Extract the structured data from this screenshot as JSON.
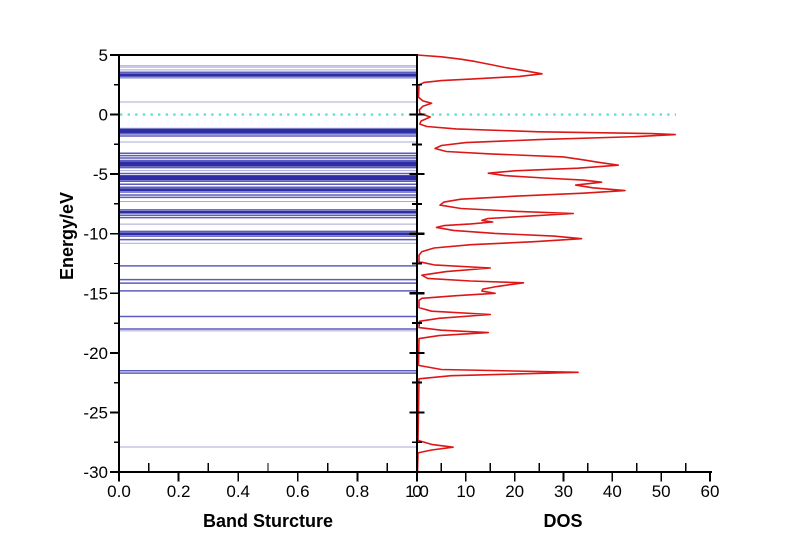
{
  "figure": {
    "background": "#ffffff",
    "description": "Band structure and density-of-states (DOS) dual-panel physics plot"
  },
  "axes": {
    "ylabel": "Energy/eV",
    "ylim": [
      -30,
      5
    ],
    "yticks": [
      5,
      0,
      -5,
      -10,
      -15,
      -20,
      -25,
      -30
    ],
    "ytick_labels": [
      "5",
      "0",
      "-5",
      "-10",
      "-15",
      "-20",
      "-25",
      "-30"
    ],
    "y_minor_step": 2.5,
    "fermi_energy_eV": 0
  },
  "colors": {
    "dos_curve": "#dd1717",
    "fermi_dotted_line": "#5ce2d4",
    "band_faint": "#a9a9d6",
    "band_medium": "#5d5dbe",
    "band_dark": "#2d2da6",
    "axis": "#000000"
  },
  "chart_data": [
    {
      "panel": "band-structure",
      "type": "line",
      "xlabel": "Band Sturcture",
      "xlim": [
        0,
        1
      ],
      "xticks": [
        0,
        0.2,
        0.4,
        0.6,
        0.8,
        1.0
      ],
      "xtick_labels": [
        "0.0",
        "0.2",
        "0.4",
        "0.6",
        "0.8",
        "1.0"
      ],
      "x_minor_positions": [
        0.1,
        0.3,
        0.5,
        0.7,
        0.9
      ],
      "grid": false,
      "energy_levels_format": "[energy_eV, weight] weight: 1=faint thin, 2=medium blue, 3=dark thick cluster",
      "energy_levels": [
        [
          4.1,
          1
        ],
        [
          3.98,
          1
        ],
        [
          3.75,
          1
        ],
        [
          3.55,
          2
        ],
        [
          3.42,
          2
        ],
        [
          3.3,
          3
        ],
        [
          3.17,
          2
        ],
        [
          3.05,
          1
        ],
        [
          1.05,
          1
        ],
        [
          -1.15,
          1
        ],
        [
          -1.3,
          3
        ],
        [
          -1.45,
          3
        ],
        [
          -1.62,
          2
        ],
        [
          -1.8,
          2
        ],
        [
          -2.3,
          1
        ],
        [
          -3.25,
          2
        ],
        [
          -3.45,
          2
        ],
        [
          -3.65,
          2
        ],
        [
          -3.85,
          2
        ],
        [
          -4.05,
          3
        ],
        [
          -4.25,
          3
        ],
        [
          -4.45,
          2
        ],
        [
          -4.7,
          1
        ],
        [
          -4.95,
          2
        ],
        [
          -5.2,
          3
        ],
        [
          -5.4,
          3
        ],
        [
          -5.6,
          2
        ],
        [
          -5.85,
          2
        ],
        [
          -6.1,
          2
        ],
        [
          -6.3,
          3
        ],
        [
          -6.5,
          2
        ],
        [
          -6.75,
          2
        ],
        [
          -6.95,
          2
        ],
        [
          -7.3,
          1
        ],
        [
          -8.0,
          2
        ],
        [
          -8.2,
          3
        ],
        [
          -8.45,
          2
        ],
        [
          -8.65,
          2
        ],
        [
          -9.2,
          1
        ],
        [
          -9.8,
          2
        ],
        [
          -10.0,
          3
        ],
        [
          -10.2,
          2
        ],
        [
          -10.5,
          2
        ],
        [
          -10.8,
          1
        ],
        [
          -12.7,
          2
        ],
        [
          -13.85,
          2
        ],
        [
          -14.15,
          2
        ],
        [
          -14.8,
          2
        ],
        [
          -16.95,
          2
        ],
        [
          -18.0,
          2
        ],
        [
          -18.15,
          1
        ],
        [
          -21.5,
          2
        ],
        [
          -21.7,
          2
        ],
        [
          -27.9,
          1
        ]
      ]
    },
    {
      "panel": "dos",
      "type": "line",
      "xlabel": "DOS",
      "xlim": [
        0,
        60
      ],
      "xticks": [
        0,
        10,
        20,
        30,
        40,
        50,
        60
      ],
      "xtick_labels": [
        "0",
        "10",
        "20",
        "30",
        "40",
        "50",
        "60"
      ],
      "x_minor_positions": [
        5,
        15,
        25,
        35,
        45,
        55
      ],
      "grid": false,
      "series": [
        {
          "name": "DOS",
          "color": "#dd1717",
          "points_format": "[dos_value, energy_eV]",
          "points": [
            [
              0,
              5.0
            ],
            [
              5,
              4.85
            ],
            [
              9,
              4.65
            ],
            [
              12,
              4.45
            ],
            [
              15,
              4.2
            ],
            [
              18,
              3.95
            ],
            [
              22,
              3.68
            ],
            [
              25.6,
              3.42
            ],
            [
              21,
              3.2
            ],
            [
              12,
              3.0
            ],
            [
              5,
              2.85
            ],
            [
              1.5,
              2.7
            ],
            [
              0.4,
              2.5
            ],
            [
              0.3,
              1.45
            ],
            [
              1.2,
              1.15
            ],
            [
              3.0,
              0.95
            ],
            [
              1.2,
              0.7
            ],
            [
              0.5,
              0.4
            ],
            [
              0.6,
              0.1
            ],
            [
              2.7,
              -0.2
            ],
            [
              0.8,
              -0.55
            ],
            [
              0.6,
              -0.8
            ],
            [
              2,
              -1.0
            ],
            [
              8,
              -1.2
            ],
            [
              25,
              -1.45
            ],
            [
              48,
              -1.6
            ],
            [
              52.9,
              -1.68
            ],
            [
              45,
              -1.85
            ],
            [
              25,
              -2.1
            ],
            [
              10,
              -2.35
            ],
            [
              5,
              -2.6
            ],
            [
              3.7,
              -2.85
            ],
            [
              6,
              -3.1
            ],
            [
              15,
              -3.3
            ],
            [
              30,
              -3.55
            ],
            [
              34,
              -3.8
            ],
            [
              37,
              -4.0
            ],
            [
              41.2,
              -4.25
            ],
            [
              33,
              -4.5
            ],
            [
              20,
              -4.72
            ],
            [
              14.6,
              -4.92
            ],
            [
              18,
              -5.12
            ],
            [
              26,
              -5.32
            ],
            [
              34,
              -5.5
            ],
            [
              37.8,
              -5.68
            ],
            [
              32.5,
              -5.92
            ],
            [
              36,
              -6.15
            ],
            [
              42.6,
              -6.38
            ],
            [
              34,
              -6.6
            ],
            [
              20,
              -6.85
            ],
            [
              9,
              -7.1
            ],
            [
              5.5,
              -7.35
            ],
            [
              4.7,
              -7.6
            ],
            [
              9,
              -7.88
            ],
            [
              20,
              -8.12
            ],
            [
              32,
              -8.3
            ],
            [
              23,
              -8.52
            ],
            [
              14.5,
              -8.72
            ],
            [
              13.3,
              -8.88
            ],
            [
              15.5,
              -9.02
            ],
            [
              11,
              -9.18
            ],
            [
              5.5,
              -9.32
            ],
            [
              4,
              -9.47
            ],
            [
              7.5,
              -9.72
            ],
            [
              16,
              -9.97
            ],
            [
              28,
              -10.2
            ],
            [
              33.7,
              -10.42
            ],
            [
              24,
              -10.67
            ],
            [
              11,
              -10.92
            ],
            [
              3.5,
              -11.2
            ],
            [
              1,
              -11.5
            ],
            [
              0.4,
              -11.8
            ],
            [
              0.4,
              -12.35
            ],
            [
              3.5,
              -12.62
            ],
            [
              15,
              -12.88
            ],
            [
              6,
              -13.18
            ],
            [
              1,
              -13.48
            ],
            [
              2.2,
              -13.75
            ],
            [
              11,
              -13.97
            ],
            [
              21.8,
              -14.12
            ],
            [
              16.5,
              -14.42
            ],
            [
              13.5,
              -14.65
            ],
            [
              13.3,
              -14.82
            ],
            [
              16,
              -15.0
            ],
            [
              8,
              -15.2
            ],
            [
              1,
              -15.42
            ],
            [
              0.4,
              -15.6
            ],
            [
              0.4,
              -16.2
            ],
            [
              3,
              -16.5
            ],
            [
              15,
              -16.78
            ],
            [
              4.5,
              -17.1
            ],
            [
              0.5,
              -17.35
            ],
            [
              0.4,
              -17.88
            ],
            [
              5,
              -18.1
            ],
            [
              14.6,
              -18.3
            ],
            [
              4.5,
              -18.55
            ],
            [
              0.4,
              -18.8
            ],
            [
              0.3,
              -21.05
            ],
            [
              5,
              -21.4
            ],
            [
              33,
              -21.63
            ],
            [
              7,
              -21.92
            ],
            [
              0.4,
              -22.18
            ],
            [
              0.2,
              -27.35
            ],
            [
              3,
              -27.68
            ],
            [
              7.4,
              -27.92
            ],
            [
              3,
              -28.15
            ],
            [
              0.2,
              -28.4
            ],
            [
              0.1,
              -30
            ]
          ]
        }
      ]
    }
  ]
}
